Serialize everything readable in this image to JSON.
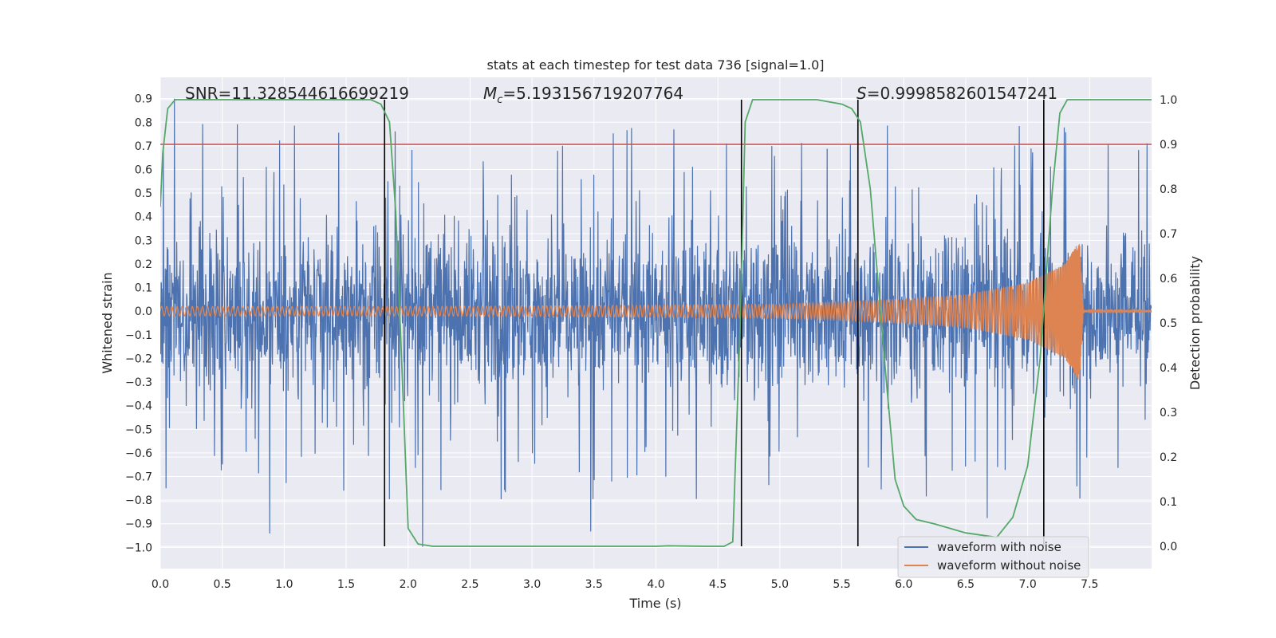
{
  "chart_data": {
    "type": "line",
    "title": "stats at each timestep for test data 736 [signal=1.0]",
    "xlabel": "Time (s)",
    "ylabel": "Whitened strain",
    "y2label": "Detection probability",
    "xlim": [
      0.0,
      8.0
    ],
    "ylim": [
      -1.09,
      0.99
    ],
    "y2lim": [
      -0.05,
      1.05
    ],
    "xticks": [
      0.0,
      0.5,
      1.0,
      1.5,
      2.0,
      2.5,
      3.0,
      3.5,
      4.0,
      4.5,
      5.0,
      5.5,
      6.0,
      6.5,
      7.0,
      7.5
    ],
    "xtick_labels": [
      "0.0",
      "0.5",
      "1.0",
      "1.5",
      "2.0",
      "2.5",
      "3.0",
      "3.5",
      "4.0",
      "4.5",
      "5.0",
      "5.5",
      "6.0",
      "6.5",
      "7.0",
      "7.5"
    ],
    "yticks": [
      0.9,
      0.8,
      0.7,
      0.6,
      0.5,
      0.4,
      0.3,
      0.2,
      0.1,
      0.0,
      -0.1,
      -0.2,
      -0.3,
      -0.4,
      -0.5,
      -0.6,
      -0.7,
      -0.8,
      -0.9,
      -1.0
    ],
    "ytick_labels": [
      "0.9",
      "0.8",
      "0.7",
      "0.6",
      "0.5",
      "0.4",
      "0.3",
      "0.2",
      "0.1",
      "0.0",
      "−0.1",
      "−0.2",
      "−0.3",
      "−0.4",
      "−0.5",
      "−0.6",
      "−0.7",
      "−0.8",
      "−0.9",
      "−1.0"
    ],
    "y2ticks": [
      1.0,
      0.9,
      0.8,
      0.7,
      0.6,
      0.5,
      0.4,
      0.3,
      0.2,
      0.1,
      0.0
    ],
    "y2tick_labels": [
      "1.0",
      "0.9",
      "0.8",
      "0.7",
      "0.6",
      "0.5",
      "0.4",
      "0.3",
      "0.2",
      "0.1",
      "0.0"
    ],
    "annotations": {
      "snr": "SNR=11.328544616699219",
      "mc_symbol": "M",
      "mc_sub": "c",
      "mc_value": "=5.193156719207764",
      "s_symbol": "S",
      "s_value": "=0.9998582601547241"
    },
    "threshold": {
      "axis": "right",
      "value": 0.9
    },
    "vertical_lines": [
      1.81,
      4.69,
      5.63,
      7.13
    ],
    "series": [
      {
        "name": "waveform with noise",
        "axis": "left",
        "color": "#4c72b0",
        "description": "dense noisy whitened strain, mostly within ±0.45 with spikes to ±1.0"
      },
      {
        "name": "waveform without noise",
        "axis": "left",
        "color": "#dd8452",
        "envelope": [
          {
            "t": 0.0,
            "amp": 0.02
          },
          {
            "t": 2.0,
            "amp": 0.02
          },
          {
            "t": 4.0,
            "amp": 0.025
          },
          {
            "t": 5.0,
            "amp": 0.03
          },
          {
            "t": 6.0,
            "amp": 0.05
          },
          {
            "t": 6.5,
            "amp": 0.07
          },
          {
            "t": 7.0,
            "amp": 0.12
          },
          {
            "t": 7.3,
            "amp": 0.2
          },
          {
            "t": 7.42,
            "amp": 0.3
          },
          {
            "t": 7.45,
            "amp": 0.005
          },
          {
            "t": 8.0,
            "amp": 0.002
          }
        ]
      },
      {
        "name": "detection probability",
        "axis": "right",
        "color": "#55a868",
        "x": [
          0.0,
          0.02,
          0.06,
          0.12,
          0.3,
          1.0,
          1.5,
          1.7,
          1.78,
          1.85,
          1.9,
          1.95,
          2.0,
          2.08,
          2.2,
          3.0,
          4.0,
          4.1,
          4.4,
          4.55,
          4.62,
          4.68,
          4.72,
          4.78,
          5.0,
          5.3,
          5.5,
          5.58,
          5.65,
          5.73,
          5.85,
          5.93,
          6.0,
          6.1,
          6.25,
          6.5,
          6.75,
          6.88,
          7.0,
          7.1,
          7.2,
          7.26,
          7.32,
          7.4,
          7.6,
          8.0
        ],
        "y": [
          0.76,
          0.88,
          0.98,
          1.0,
          1.0,
          1.0,
          1.0,
          1.0,
          0.99,
          0.95,
          0.75,
          0.4,
          0.04,
          0.005,
          0.0,
          0.0,
          0.0,
          0.001,
          0.0,
          0.0,
          0.01,
          0.5,
          0.95,
          1.0,
          1.0,
          1.0,
          0.99,
          0.98,
          0.95,
          0.8,
          0.4,
          0.15,
          0.09,
          0.06,
          0.05,
          0.03,
          0.02,
          0.065,
          0.18,
          0.42,
          0.8,
          0.97,
          1.0,
          1.0,
          1.0,
          1.0
        ]
      }
    ],
    "legend": {
      "position": "lower-right",
      "entries": [
        {
          "label": "waveform with noise",
          "color": "#4c72b0"
        },
        {
          "label": "waveform without noise",
          "color": "#dd8452"
        }
      ]
    },
    "grid": true,
    "style": {
      "background": "#eaeaf2",
      "grid_color": "#ffffff",
      "threshold_color": "#c44e52",
      "vline_color": "#000000",
      "text_color": "#262626"
    }
  }
}
